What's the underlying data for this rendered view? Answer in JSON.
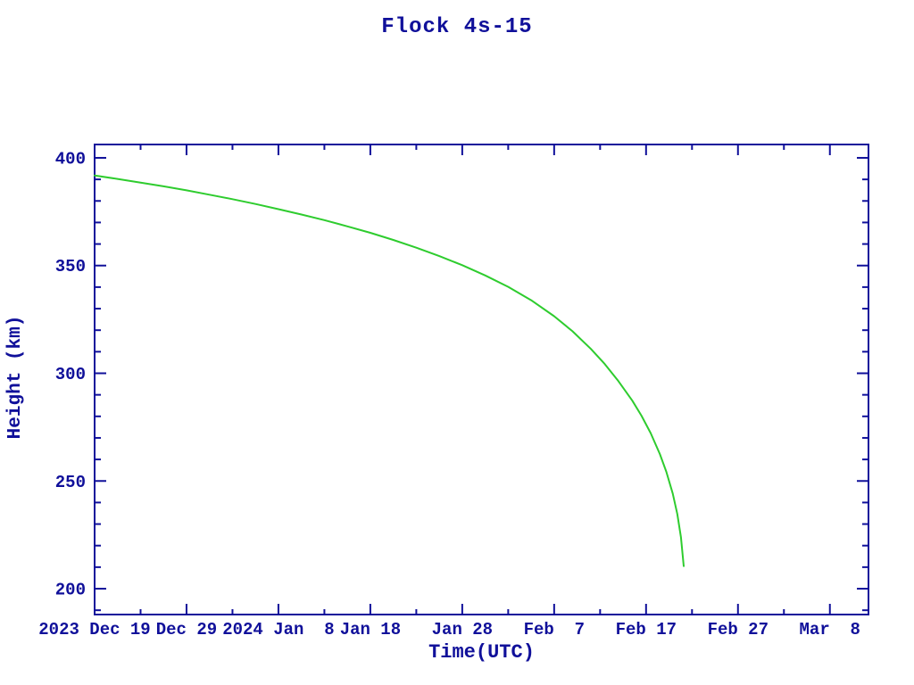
{
  "title": "Flock 4s-15",
  "colors": {
    "axis": "#10109a",
    "curve": "#2ecc2e",
    "background": "#ffffff"
  },
  "chart_data": {
    "type": "line",
    "title": "Flock 4s-15",
    "xlabel": "Time(UTC)",
    "ylabel": "Height (km)",
    "grid": "off",
    "legend": "none",
    "x_unit": "days since 2023 Dec 19",
    "x_range_days": [
      0,
      84.2
    ],
    "ylim_km": [
      188.0,
      406.2
    ],
    "x_major_ticks": [
      {
        "day": 0,
        "label": "2023 Dec 19"
      },
      {
        "day": 10,
        "label": "Dec 29"
      },
      {
        "day": 20,
        "label": "2024 Jan  8"
      },
      {
        "day": 30,
        "label": "Jan 18"
      },
      {
        "day": 40,
        "label": "Jan 28"
      },
      {
        "day": 50,
        "label": "Feb  7"
      },
      {
        "day": 60,
        "label": "Feb 17"
      },
      {
        "day": 70,
        "label": "Feb 27"
      },
      {
        "day": 80,
        "label": "Mar  8"
      }
    ],
    "x_minor_days": [
      5,
      15,
      25,
      35,
      45,
      55,
      65,
      75
    ],
    "y_major_ticks": [
      {
        "km": 400,
        "label": "400"
      },
      {
        "km": 350,
        "label": "350"
      },
      {
        "km": 300,
        "label": "300"
      },
      {
        "km": 250,
        "label": "250"
      },
      {
        "km": 200,
        "label": "200"
      }
    ],
    "y_minor_km": [
      190,
      210,
      220,
      230,
      240,
      260,
      270,
      280,
      290,
      310,
      320,
      330,
      340,
      360,
      370,
      380,
      390
    ],
    "series": [
      {
        "name": "height",
        "x_days": [
          0,
          2.5,
          5,
          7.5,
          10,
          12.5,
          15,
          17.5,
          20,
          22.5,
          25,
          27.5,
          30,
          32.5,
          35,
          37.5,
          40,
          42.5,
          45,
          47.5,
          50,
          52,
          54,
          55.5,
          57,
          58.5,
          59.5,
          60.5,
          61.5,
          62.2,
          62.9,
          63.4,
          63.8,
          64.1
        ],
        "y_km": [
          391.8,
          390.2,
          388.5,
          386.8,
          384.9,
          382.9,
          380.8,
          378.6,
          376.2,
          373.7,
          371.1,
          368.2,
          365.2,
          361.9,
          358.3,
          354.4,
          350.2,
          345.4,
          340.1,
          333.9,
          326.5,
          319.5,
          311.3,
          304.3,
          296.3,
          287.3,
          280.3,
          272.2,
          262.5,
          254.3,
          244.2,
          234.7,
          223.9,
          210.5
        ]
      }
    ]
  }
}
